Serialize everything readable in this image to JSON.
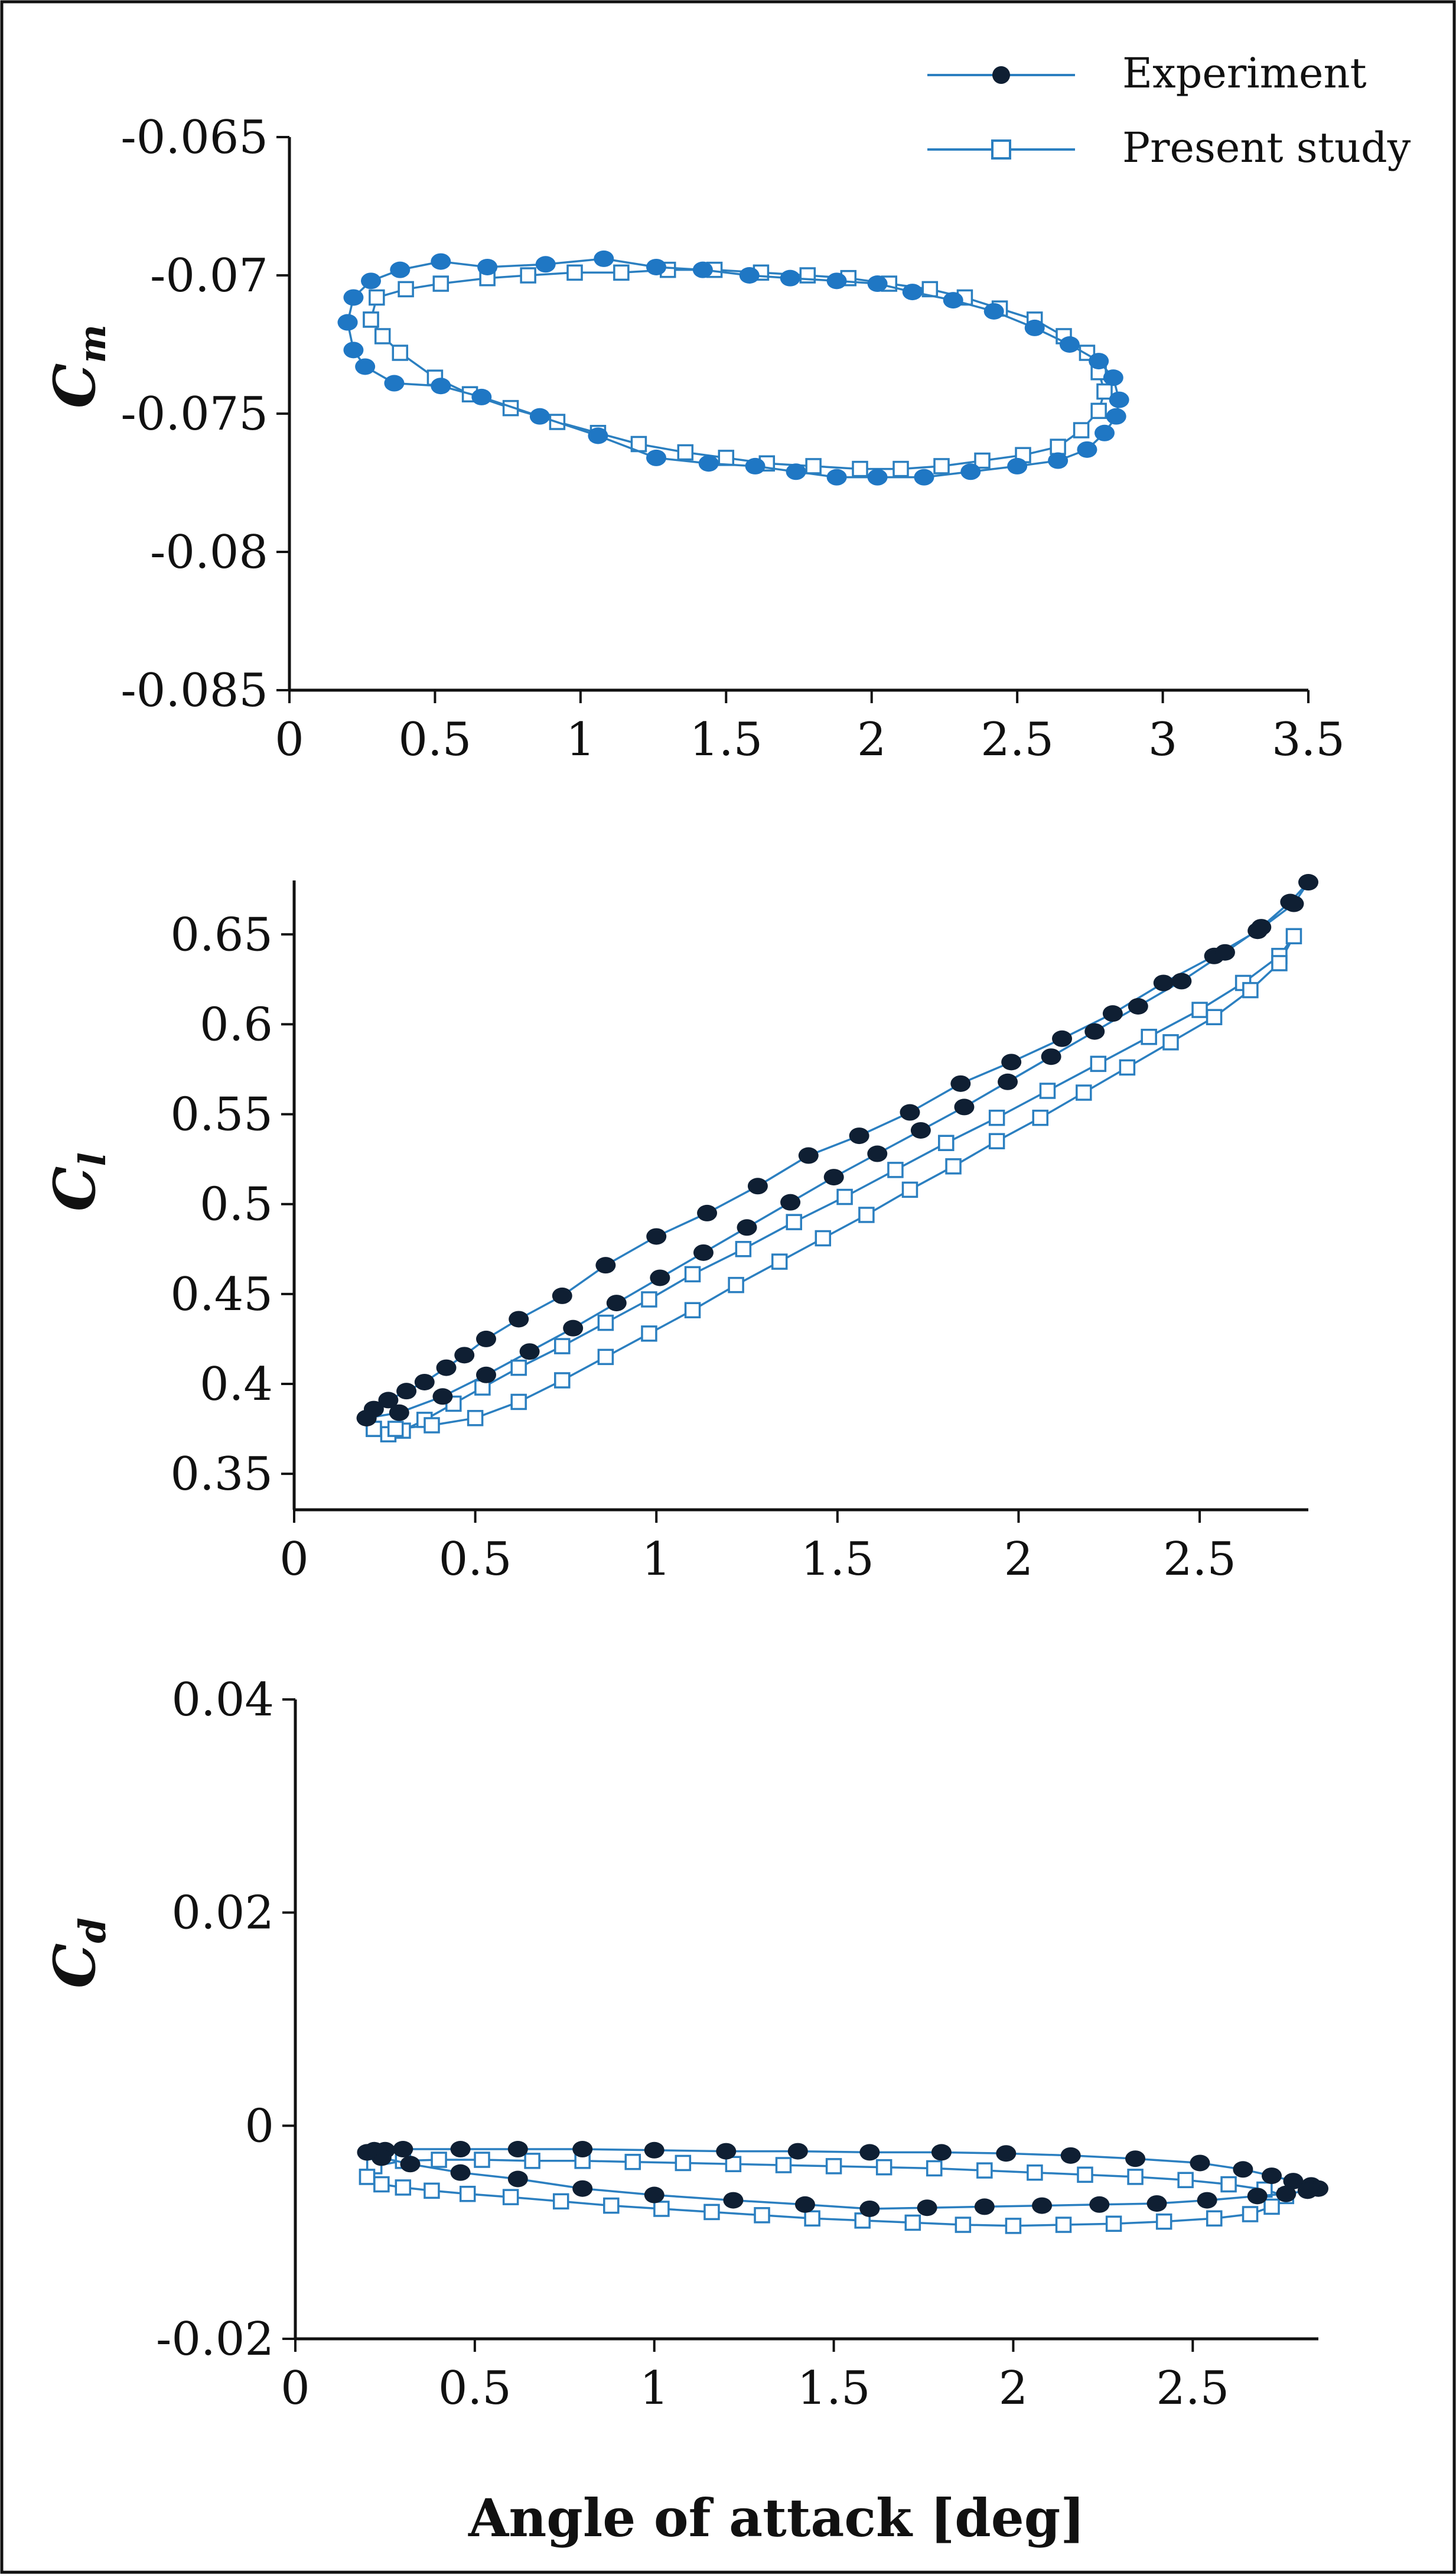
{
  "legend": {
    "experiment": "Experiment",
    "present": "Present study"
  },
  "xlabel": "Angle of attack [deg]",
  "colors": {
    "experiment_top": "#1f77c4",
    "experiment_dark": "#0f1f33",
    "present_stroke": "#2b7fc0",
    "line": "#2b7fc0",
    "axis": "#111111"
  },
  "chart_data": [
    {
      "type": "line",
      "ylabel_main": "C",
      "ylabel_sub": "m",
      "xlim": [
        0,
        3.5
      ],
      "ylim": [
        -0.085,
        -0.065
      ],
      "x_ticks": [
        "0",
        "0.5",
        "1",
        "1.5",
        "2",
        "2.5",
        "3",
        "3.5"
      ],
      "x_tick_values": [
        0,
        0.5,
        1,
        1.5,
        2,
        2.5,
        3,
        3.5
      ],
      "y_ticks": [
        "-0.065",
        "-0.07",
        "-0.075",
        "-0.08",
        "-0.085"
      ],
      "y_tick_values": [
        -0.065,
        -0.07,
        -0.075,
        -0.08,
        -0.085
      ],
      "series": [
        {
          "name": "Experiment",
          "x": [
            0.2,
            0.22,
            0.26,
            0.36,
            0.52,
            0.66,
            0.86,
            1.06,
            1.26,
            1.44,
            1.6,
            1.74,
            1.88,
            2.02,
            2.18,
            2.34,
            2.5,
            2.64,
            2.74,
            2.8,
            2.84,
            2.85,
            2.83,
            2.78,
            2.68,
            2.56,
            2.42,
            2.28,
            2.14,
            2.02,
            1.88,
            1.72,
            1.58,
            1.42,
            1.26,
            1.08,
            0.88,
            0.68,
            0.52,
            0.38,
            0.28,
            0.22,
            0.2
          ],
          "y": [
            -0.0717,
            -0.0727,
            -0.0733,
            -0.0739,
            -0.074,
            -0.0744,
            -0.0751,
            -0.0758,
            -0.0766,
            -0.0768,
            -0.0769,
            -0.0771,
            -0.0773,
            -0.0773,
            -0.0773,
            -0.0771,
            -0.0769,
            -0.0767,
            -0.0763,
            -0.0757,
            -0.0751,
            -0.0745,
            -0.0737,
            -0.0731,
            -0.0725,
            -0.0719,
            -0.0713,
            -0.0709,
            -0.0706,
            -0.0703,
            -0.0702,
            -0.0701,
            -0.07,
            -0.0698,
            -0.0697,
            -0.0694,
            -0.0696,
            -0.0697,
            -0.0695,
            -0.0698,
            -0.0702,
            -0.0708,
            -0.0717
          ]
        },
        {
          "name": "Present study",
          "x": [
            0.28,
            0.32,
            0.38,
            0.5,
            0.62,
            0.76,
            0.92,
            1.06,
            1.2,
            1.36,
            1.5,
            1.64,
            1.8,
            1.96,
            2.1,
            2.24,
            2.38,
            2.52,
            2.64,
            2.72,
            2.78,
            2.8,
            2.78,
            2.74,
            2.66,
            2.56,
            2.44,
            2.32,
            2.2,
            2.06,
            1.92,
            1.78,
            1.62,
            1.46,
            1.3,
            1.14,
            0.98,
            0.82,
            0.68,
            0.52,
            0.4,
            0.3,
            0.28
          ],
          "y": [
            -0.0716,
            -0.0722,
            -0.0728,
            -0.0737,
            -0.0743,
            -0.0748,
            -0.0753,
            -0.0757,
            -0.0761,
            -0.0764,
            -0.0766,
            -0.0768,
            -0.0769,
            -0.077,
            -0.077,
            -0.0769,
            -0.0767,
            -0.0765,
            -0.0762,
            -0.0756,
            -0.0749,
            -0.0742,
            -0.0735,
            -0.0728,
            -0.0722,
            -0.0716,
            -0.0712,
            -0.0708,
            -0.0705,
            -0.0703,
            -0.0701,
            -0.07,
            -0.0699,
            -0.0698,
            -0.0698,
            -0.0699,
            -0.0699,
            -0.07,
            -0.0701,
            -0.0703,
            -0.0705,
            -0.0708,
            -0.0716
          ]
        }
      ]
    },
    {
      "type": "line",
      "ylabel_main": "C",
      "ylabel_sub": "l",
      "xlim": [
        0,
        2.8
      ],
      "ylim": [
        0.33,
        0.68
      ],
      "x_ticks": [
        "0",
        "0.5",
        "1",
        "1.5",
        "2",
        "2.5"
      ],
      "x_tick_values": [
        0,
        0.5,
        1,
        1.5,
        2,
        2.5
      ],
      "y_ticks": [
        "0.35",
        "0.4",
        "0.45",
        "0.5",
        "0.55",
        "0.6",
        "0.65"
      ],
      "y_tick_values": [
        0.35,
        0.4,
        0.45,
        0.5,
        0.55,
        0.6,
        0.65
      ],
      "series": [
        {
          "name": "Experiment",
          "x": [
            0.2,
            0.22,
            0.26,
            0.31,
            0.36,
            0.42,
            0.47,
            0.53,
            0.62,
            0.74,
            0.86,
            1.0,
            1.14,
            1.28,
            1.42,
            1.56,
            1.7,
            1.84,
            1.98,
            2.12,
            2.26,
            2.4,
            2.54,
            2.66,
            2.76,
            2.8,
            2.75,
            2.67,
            2.57,
            2.45,
            2.33,
            2.21,
            2.09,
            1.97,
            1.85,
            1.73,
            1.61,
            1.49,
            1.37,
            1.25,
            1.13,
            1.01,
            0.89,
            0.77,
            0.65,
            0.53,
            0.41,
            0.29,
            0.2
          ],
          "y": [
            0.381,
            0.386,
            0.391,
            0.396,
            0.401,
            0.409,
            0.416,
            0.425,
            0.436,
            0.449,
            0.466,
            0.482,
            0.495,
            0.51,
            0.527,
            0.538,
            0.551,
            0.567,
            0.579,
            0.592,
            0.606,
            0.623,
            0.638,
            0.652,
            0.667,
            0.679,
            0.668,
            0.654,
            0.64,
            0.624,
            0.61,
            0.596,
            0.582,
            0.568,
            0.554,
            0.541,
            0.528,
            0.515,
            0.501,
            0.487,
            0.473,
            0.459,
            0.445,
            0.431,
            0.418,
            0.405,
            0.393,
            0.384,
            0.381
          ]
        },
        {
          "name": "Present study",
          "x": [
            0.22,
            0.26,
            0.3,
            0.36,
            0.44,
            0.52,
            0.62,
            0.74,
            0.86,
            0.98,
            1.1,
            1.24,
            1.38,
            1.52,
            1.66,
            1.8,
            1.94,
            2.08,
            2.22,
            2.36,
            2.5,
            2.62,
            2.72,
            2.76,
            2.72,
            2.64,
            2.54,
            2.42,
            2.3,
            2.18,
            2.06,
            1.94,
            1.82,
            1.7,
            1.58,
            1.46,
            1.34,
            1.22,
            1.1,
            0.98,
            0.86,
            0.74,
            0.62,
            0.5,
            0.38,
            0.28,
            0.22
          ],
          "y": [
            0.375,
            0.372,
            0.374,
            0.38,
            0.389,
            0.398,
            0.409,
            0.421,
            0.434,
            0.447,
            0.461,
            0.475,
            0.49,
            0.504,
            0.519,
            0.534,
            0.548,
            0.563,
            0.578,
            0.593,
            0.608,
            0.623,
            0.638,
            0.649,
            0.634,
            0.619,
            0.604,
            0.59,
            0.576,
            0.562,
            0.548,
            0.535,
            0.521,
            0.508,
            0.494,
            0.481,
            0.468,
            0.455,
            0.441,
            0.428,
            0.415,
            0.402,
            0.39,
            0.381,
            0.377,
            0.375,
            0.375
          ]
        }
      ]
    },
    {
      "type": "line",
      "ylabel_main": "C",
      "ylabel_sub": "d",
      "xlim": [
        0,
        2.85
      ],
      "ylim": [
        -0.02,
        0.04
      ],
      "x_ticks": [
        "0",
        "0.5",
        "1",
        "1.5",
        "2",
        "2.5"
      ],
      "x_tick_values": [
        0,
        0.5,
        1,
        1.5,
        2,
        2.5
      ],
      "y_ticks": [
        "-0.02",
        "0",
        "0.02",
        "0.04"
      ],
      "y_tick_values": [
        -0.02,
        0,
        0.02,
        0.04
      ],
      "series": [
        {
          "name": "Experiment",
          "x": [
            0.2,
            0.22,
            0.25,
            0.3,
            0.46,
            0.62,
            0.8,
            1.0,
            1.2,
            1.4,
            1.6,
            1.8,
            1.98,
            2.16,
            2.34,
            2.52,
            2.64,
            2.72,
            2.78,
            2.83,
            2.85,
            2.82,
            2.76,
            2.68,
            2.54,
            2.4,
            2.24,
            2.08,
            1.92,
            1.76,
            1.6,
            1.42,
            1.22,
            1.0,
            0.8,
            0.62,
            0.46,
            0.32,
            0.24,
            0.2
          ],
          "y": [
            -0.0025,
            -0.0023,
            -0.0023,
            -0.0022,
            -0.0022,
            -0.0022,
            -0.0022,
            -0.0023,
            -0.0024,
            -0.0024,
            -0.0025,
            -0.0025,
            -0.0026,
            -0.0028,
            -0.0031,
            -0.0035,
            -0.0041,
            -0.0047,
            -0.0052,
            -0.0056,
            -0.0059,
            -0.0061,
            -0.0064,
            -0.0066,
            -0.007,
            -0.0073,
            -0.0074,
            -0.0075,
            -0.0076,
            -0.0077,
            -0.0078,
            -0.0074,
            -0.007,
            -0.0065,
            -0.0059,
            -0.005,
            -0.0044,
            -0.0036,
            -0.003,
            -0.0025
          ]
        },
        {
          "name": "Present study",
          "x": [
            0.2,
            0.24,
            0.3,
            0.38,
            0.48,
            0.6,
            0.74,
            0.88,
            1.02,
            1.16,
            1.3,
            1.44,
            1.58,
            1.72,
            1.86,
            2.0,
            2.14,
            2.28,
            2.42,
            2.56,
            2.66,
            2.72,
            2.76,
            2.7,
            2.6,
            2.48,
            2.34,
            2.2,
            2.06,
            1.92,
            1.78,
            1.64,
            1.5,
            1.36,
            1.22,
            1.08,
            0.94,
            0.8,
            0.66,
            0.52,
            0.4,
            0.3,
            0.22,
            0.2
          ],
          "y": [
            -0.0048,
            -0.0055,
            -0.0058,
            -0.0061,
            -0.0064,
            -0.0067,
            -0.0071,
            -0.0075,
            -0.0078,
            -0.0081,
            -0.0084,
            -0.0087,
            -0.0089,
            -0.0091,
            -0.0093,
            -0.0094,
            -0.0093,
            -0.0092,
            -0.009,
            -0.0087,
            -0.0083,
            -0.0076,
            -0.0066,
            -0.006,
            -0.0055,
            -0.0051,
            -0.0048,
            -0.0046,
            -0.0044,
            -0.0042,
            -0.004,
            -0.0039,
            -0.0038,
            -0.0037,
            -0.0036,
            -0.0035,
            -0.0034,
            -0.0033,
            -0.0033,
            -0.0032,
            -0.0032,
            -0.0033,
            -0.0038,
            -0.0048
          ]
        }
      ]
    }
  ]
}
